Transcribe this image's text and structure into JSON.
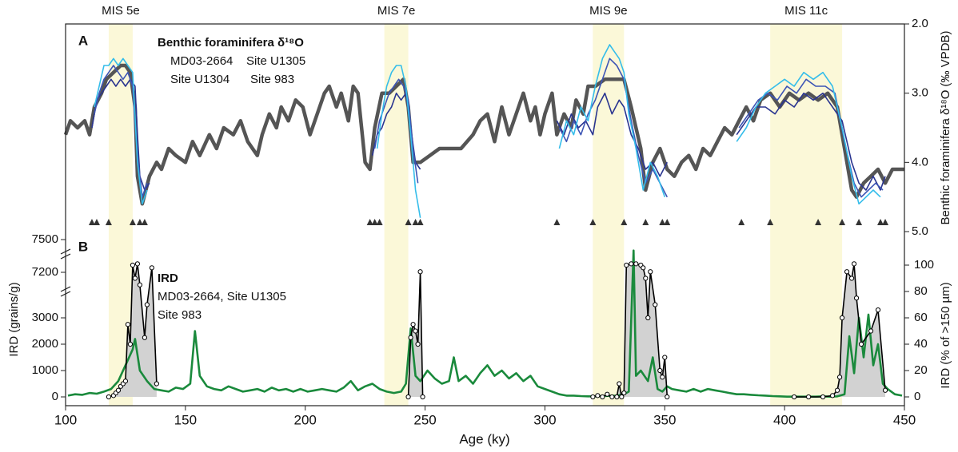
{
  "chart_data": [
    {
      "type": "line",
      "panel_label": "A",
      "title": "Benthic foraminifera δ¹⁸O",
      "y_label": "Benthic foraminifera δ¹⁸O (‰ VPDB)",
      "xlim": [
        100,
        450
      ],
      "ylim": [
        5,
        2
      ],
      "yticks": [
        {
          "value": 2,
          "label": "2.0"
        },
        {
          "value": 3,
          "label": "3.0"
        },
        {
          "value": 4,
          "label": "4.0"
        },
        {
          "value": 5,
          "label": "5.0"
        }
      ],
      "bands": [
        {
          "label": "MIS 5e",
          "x": [
            118,
            128
          ]
        },
        {
          "label": "MIS 7e",
          "x": [
            233,
            243
          ]
        },
        {
          "label": "MIS 9e",
          "x": [
            320,
            333
          ]
        },
        {
          "label": "MIS 11c",
          "x": [
            394,
            424
          ]
        }
      ],
      "band_color": "#fbf8d8",
      "tie_points": [
        111,
        113,
        118,
        128,
        131,
        133,
        227,
        229,
        231,
        243,
        246,
        248,
        305,
        320,
        333,
        342,
        349,
        351,
        382,
        394,
        414,
        424,
        431,
        440,
        442
      ],
      "series": [
        {
          "name": "MD03-2664",
          "color": "#2a3590",
          "x": [
            111,
            113,
            115,
            117,
            119,
            121,
            123,
            125,
            127,
            129,
            130,
            131,
            133,
            135,
            180,
            228,
            230,
            232,
            234,
            236,
            238,
            240,
            242,
            244,
            246,
            248,
            280,
            305,
            308,
            311,
            314,
            317,
            320,
            322,
            325,
            328,
            331,
            333,
            336,
            339,
            342,
            345,
            348,
            351,
            365,
            380,
            384,
            388,
            392,
            396,
            400,
            404,
            408,
            412,
            416,
            420,
            424,
            428,
            431,
            434,
            437,
            440,
            442
          ],
          "values": [
            3.5,
            3.1,
            3.0,
            2.9,
            2.8,
            2.9,
            2.8,
            2.9,
            2.8,
            2.9,
            3.6,
            4.2,
            4.4,
            4.3,
            null,
            3.9,
            3.6,
            3.5,
            3.3,
            3.2,
            3.0,
            3.1,
            3.0,
            3.5,
            4.0,
            4.1,
            null,
            3.4,
            3.6,
            3.3,
            3.5,
            3.4,
            3.6,
            3.2,
            3.0,
            3.3,
            3.1,
            3.2,
            3.6,
            3.8,
            4.1,
            4.0,
            4.2,
            4.0,
            null,
            3.6,
            3.4,
            3.2,
            3.2,
            3.3,
            3.1,
            3.2,
            3.0,
            3.1,
            3.0,
            3.2,
            3.4,
            4.0,
            4.3,
            4.4,
            4.2,
            4.4,
            4.2
          ]
        },
        {
          "name": "Site U1305",
          "color": "#3d55b5",
          "x": [
            112,
            114,
            116,
            118,
            120,
            122,
            124,
            126,
            128,
            130,
            132,
            134,
            180,
            229,
            231,
            233,
            235,
            237,
            239,
            241,
            243,
            245,
            247,
            280,
            306,
            309,
            312,
            315,
            318,
            321,
            324,
            327,
            330,
            333,
            336,
            339,
            342,
            345,
            348,
            351,
            365,
            381,
            385,
            389,
            393,
            397,
            401,
            405,
            409,
            413,
            417,
            421,
            425,
            429,
            432,
            435,
            438,
            441
          ],
          "values": [
            3.3,
            3.0,
            2.8,
            2.7,
            2.6,
            2.7,
            2.8,
            2.7,
            2.9,
            3.9,
            4.5,
            4.3,
            null,
            3.8,
            3.4,
            3.2,
            3.0,
            2.9,
            2.8,
            2.9,
            3.1,
            3.8,
            4.3,
            null,
            3.5,
            3.7,
            3.4,
            3.6,
            3.3,
            3.1,
            2.8,
            2.5,
            2.6,
            2.8,
            3.4,
            3.9,
            4.3,
            4.1,
            4.3,
            4.5,
            null,
            3.5,
            3.3,
            3.1,
            3.0,
            3.1,
            2.9,
            3.0,
            2.8,
            2.9,
            2.9,
            3.0,
            3.7,
            4.3,
            4.5,
            4.4,
            4.3,
            4.4
          ]
        },
        {
          "name": "Site U1304",
          "color": "#35bdea",
          "x": [
            112,
            114,
            116,
            118,
            120,
            122,
            124,
            126,
            128,
            130,
            132,
            134,
            180,
            230,
            232,
            234,
            236,
            238,
            240,
            242,
            244,
            246,
            248,
            280,
            306,
            309,
            312,
            315,
            318,
            321,
            324,
            327,
            329,
            331,
            333,
            335,
            338,
            341,
            344,
            347,
            350,
            365,
            380,
            384,
            388,
            392,
            396,
            400,
            404,
            408,
            412,
            416,
            420,
            424,
            428,
            431,
            434,
            437,
            440
          ],
          "values": [
            3.2,
            2.9,
            2.6,
            2.6,
            2.5,
            2.6,
            2.5,
            2.6,
            2.7,
            4.0,
            4.6,
            4.4,
            null,
            3.8,
            3.3,
            2.9,
            2.7,
            2.6,
            2.6,
            2.9,
            3.6,
            4.4,
            4.8,
            null,
            3.8,
            3.4,
            3.6,
            3.2,
            3.4,
            2.9,
            2.5,
            2.3,
            2.4,
            2.5,
            2.7,
            3.3,
            3.8,
            4.4,
            4.0,
            4.2,
            4.5,
            null,
            3.7,
            3.5,
            3.2,
            3.0,
            2.9,
            2.8,
            2.9,
            2.7,
            2.8,
            2.7,
            2.9,
            3.5,
            4.2,
            4.6,
            4.5,
            4.4,
            4.5
          ]
        },
        {
          "name": "Site 983",
          "color": "#555555",
          "x": [
            100,
            102,
            105,
            108,
            110,
            112,
            115,
            117,
            120,
            123,
            125,
            127,
            129,
            130,
            132,
            135,
            138,
            140,
            143,
            146,
            150,
            153,
            156,
            160,
            163,
            166,
            170,
            173,
            176,
            180,
            182,
            185,
            188,
            190,
            193,
            196,
            199,
            202,
            205,
            208,
            210,
            213,
            215,
            218,
            220,
            222,
            225,
            227,
            229,
            232,
            235,
            238,
            241,
            243,
            245,
            248,
            252,
            256,
            260,
            265,
            270,
            273,
            276,
            279,
            282,
            285,
            288,
            291,
            294,
            296,
            298,
            300,
            303,
            305,
            308,
            311,
            313,
            316,
            318,
            321,
            325,
            329,
            333,
            336,
            340,
            342,
            345,
            348,
            351,
            354,
            357,
            360,
            363,
            366,
            369,
            372,
            375,
            378,
            381,
            384,
            387,
            390,
            394,
            398,
            402,
            406,
            410,
            414,
            418,
            422,
            424,
            426,
            428,
            430,
            433,
            436,
            439,
            442,
            445,
            450
          ],
          "values": [
            3.6,
            3.4,
            3.5,
            3.4,
            3.6,
            3.2,
            3.0,
            2.8,
            2.7,
            2.6,
            2.6,
            2.7,
            3.2,
            4.2,
            4.6,
            4.2,
            4.0,
            4.1,
            3.8,
            3.9,
            4.0,
            3.7,
            3.9,
            3.6,
            3.8,
            3.5,
            3.6,
            3.4,
            3.7,
            3.9,
            3.6,
            3.3,
            3.5,
            3.2,
            3.4,
            3.1,
            3.2,
            3.6,
            3.3,
            3.0,
            2.9,
            3.2,
            3.0,
            3.4,
            2.9,
            3.0,
            4.0,
            4.1,
            3.5,
            3.0,
            3.0,
            2.9,
            2.8,
            3.2,
            4.0,
            4.0,
            3.9,
            3.8,
            3.8,
            3.8,
            3.6,
            3.4,
            3.3,
            3.7,
            3.2,
            3.6,
            3.3,
            3.0,
            3.4,
            3.2,
            3.6,
            3.3,
            3.0,
            3.6,
            3.3,
            3.5,
            3.1,
            3.3,
            2.9,
            2.9,
            2.8,
            2.8,
            2.8,
            3.2,
            3.8,
            4.4,
            4.0,
            3.8,
            4.1,
            4.2,
            4.0,
            3.9,
            4.1,
            3.8,
            3.9,
            3.7,
            3.5,
            3.6,
            3.4,
            3.2,
            3.4,
            3.1,
            3.0,
            3.2,
            3.0,
            3.1,
            3.0,
            3.1,
            3.0,
            3.2,
            3.6,
            4.0,
            4.4,
            4.5,
            4.3,
            4.2,
            4.1,
            4.3,
            4.1,
            4.1
          ]
        }
      ]
    },
    {
      "type": "line",
      "panel_label": "B",
      "title": "IRD",
      "xlabel": "Age (ky)",
      "y_label": "IRD (grains/g)",
      "y2_label": "IRD (% of >150 µm)",
      "xlim": [
        100,
        450
      ],
      "xticks": [
        100,
        150,
        200,
        250,
        300,
        350,
        400,
        450
      ],
      "ylim": [
        0,
        7500
      ],
      "yticks": [
        0,
        1000,
        2000,
        3000,
        7200,
        7500
      ],
      "y_color": "#1a8a3c",
      "y2lim": [
        0,
        100
      ],
      "y2ticks": [
        0,
        20,
        40,
        60,
        80,
        100
      ],
      "series": [
        {
          "name": "MD03-2664, Site U1305",
          "color": "#000000",
          "axis": "y2",
          "markers": true,
          "fill": "#d2d2d2",
          "x": [
            118,
            120,
            121,
            122,
            123,
            124,
            125,
            126,
            127,
            128,
            129,
            130,
            131,
            133,
            134,
            136,
            138,
            180,
            243,
            244,
            245,
            246,
            247,
            248,
            249,
            280,
            320,
            322,
            324,
            326,
            328,
            330,
            331,
            332,
            333,
            334,
            336,
            338,
            340,
            341,
            342,
            343,
            344,
            346,
            348,
            349,
            350,
            351,
            380,
            404,
            410,
            416,
            420,
            422,
            423,
            424,
            426,
            428,
            429,
            430,
            432,
            436,
            439,
            442
          ],
          "values": [
            0,
            1,
            3,
            5,
            8,
            10,
            12,
            55,
            40,
            100,
            90,
            101,
            85,
            45,
            70,
            98,
            10,
            null,
            0,
            45,
            55,
            50,
            40,
            95,
            0,
            null,
            0,
            1,
            0,
            2,
            0,
            0,
            10,
            0,
            3,
            100,
            101,
            101,
            100,
            98,
            90,
            60,
            95,
            70,
            20,
            15,
            30,
            0,
            null,
            0,
            0,
            0,
            1,
            5,
            15,
            60,
            95,
            90,
            101,
            75,
            40,
            50,
            66,
            5
          ]
        },
        {
          "name": "Site 983",
          "color": "#1a8a3c",
          "x": [
            101,
            104,
            107,
            110,
            113,
            116,
            119,
            122,
            125,
            128,
            129,
            131,
            134,
            137,
            140,
            143,
            146,
            149,
            152,
            154,
            156,
            159,
            162,
            165,
            168,
            171,
            174,
            177,
            180,
            183,
            186,
            189,
            192,
            195,
            198,
            201,
            204,
            207,
            210,
            213,
            216,
            219,
            222,
            225,
            228,
            231,
            234,
            237,
            240,
            242,
            244,
            246,
            248,
            251,
            254,
            257,
            260,
            262,
            264,
            267,
            270,
            273,
            276,
            279,
            282,
            285,
            288,
            291,
            294,
            297,
            300,
            303,
            306,
            309,
            312,
            315,
            318,
            321,
            324,
            327,
            330,
            333,
            335,
            337,
            338,
            340,
            343,
            345,
            347,
            349,
            351,
            353,
            356,
            359,
            362,
            365,
            368,
            371,
            374,
            377,
            380,
            383,
            386,
            389,
            392,
            395,
            398,
            401,
            404,
            407,
            410,
            413,
            416,
            419,
            422,
            425,
            427,
            429,
            431,
            433,
            435,
            437,
            439,
            441,
            443,
            446,
            449
          ],
          "values": [
            50,
            100,
            80,
            150,
            120,
            200,
            300,
            600,
            1200,
            1800,
            2200,
            1000,
            600,
            300,
            250,
            200,
            350,
            300,
            500,
            2500,
            800,
            400,
            300,
            250,
            400,
            300,
            200,
            250,
            300,
            200,
            350,
            250,
            300,
            200,
            300,
            200,
            250,
            300,
            250,
            200,
            350,
            600,
            250,
            400,
            500,
            300,
            200,
            150,
            200,
            500,
            2600,
            800,
            600,
            1000,
            700,
            500,
            600,
            1500,
            600,
            800,
            500,
            900,
            1200,
            800,
            1000,
            700,
            900,
            600,
            800,
            400,
            300,
            200,
            100,
            50,
            50,
            30,
            20,
            20,
            30,
            40,
            50,
            100,
            200,
            7400,
            800,
            1000,
            600,
            1500,
            300,
            200,
            400,
            300,
            250,
            200,
            300,
            200,
            300,
            250,
            200,
            150,
            100,
            100,
            80,
            60,
            50,
            30,
            20,
            10,
            10,
            10,
            10,
            10,
            20,
            10,
            20,
            100,
            2300,
            900,
            3000,
            1500,
            3300,
            1200,
            2000,
            500,
            300,
            100,
            50
          ]
        }
      ]
    }
  ]
}
